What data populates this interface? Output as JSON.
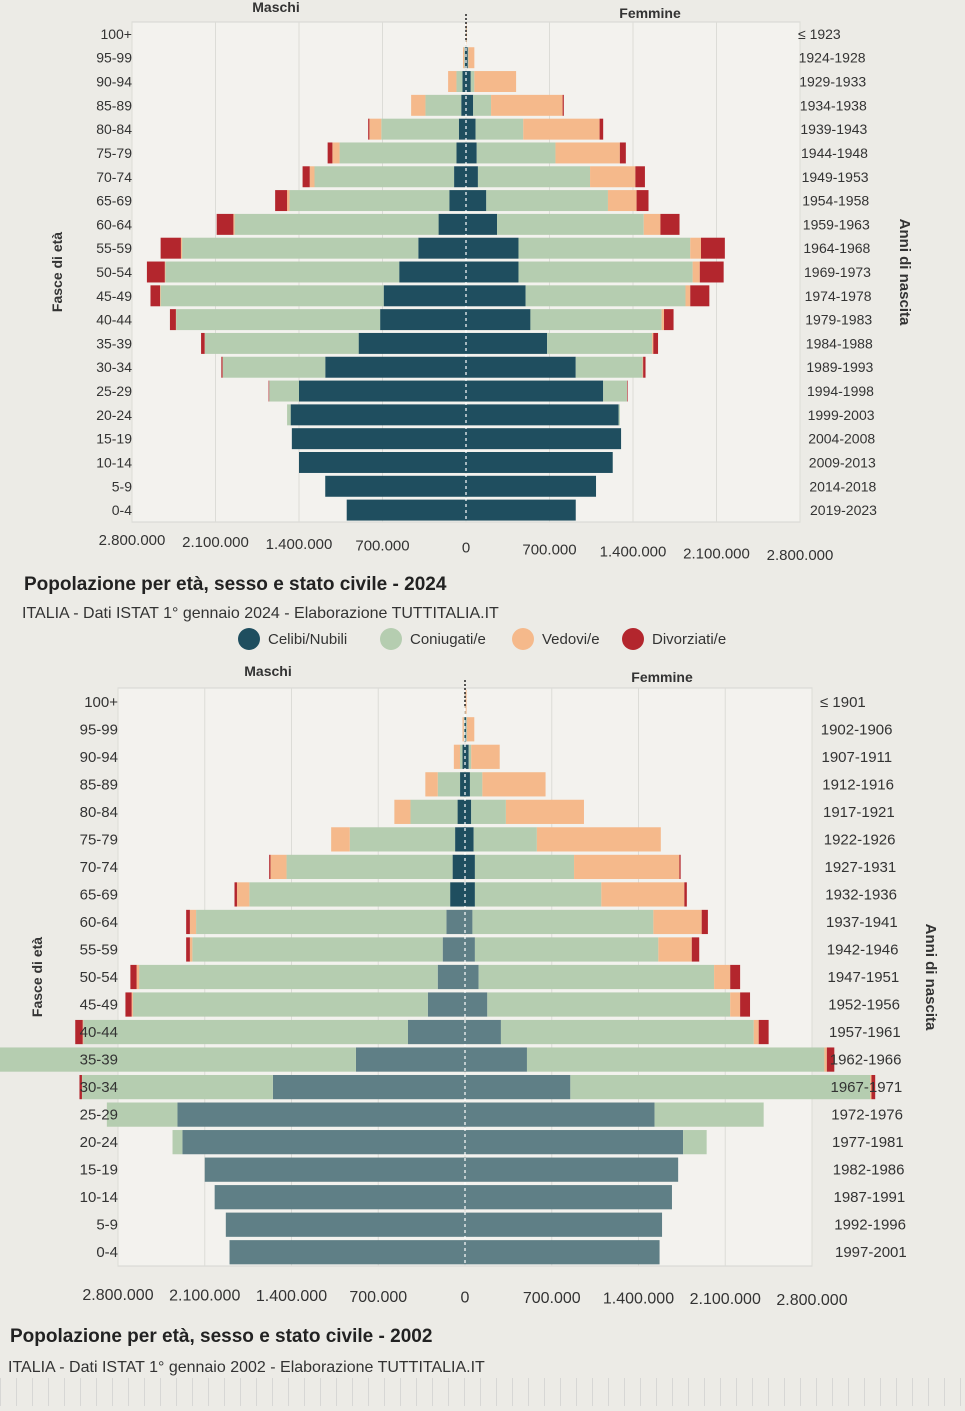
{
  "legend": {
    "items": [
      {
        "label": "Celibi/Nubili",
        "color": "#1f4e5f"
      },
      {
        "label": "Coniugati/e",
        "color": "#b5cdb0"
      },
      {
        "label": "Vedovi/e",
        "color": "#f5b98b"
      },
      {
        "label": "Divorziati/e",
        "color": "#b3262d"
      }
    ]
  },
  "chart_data": [
    {
      "type": "bar",
      "orientation": "horizontal-pyramid",
      "title": "Popolazione per età, sesso e stato civile - 2024",
      "subtitle": "ITALIA - Dati ISTAT 1° gennaio 2024 - Elaborazione TUTTITALIA.IT",
      "left_label": "Maschi",
      "right_label": "Femmine",
      "ylabel_left": "Fasce di età",
      "ylabel_right": "Anni di nascita",
      "xlim": [
        -2800000,
        2800000
      ],
      "xticks": [
        "2.800.000",
        "2.100.000",
        "1.400.000",
        "700.000",
        "0",
        "700.000",
        "1.400.000",
        "2.100.000",
        "2.800.000"
      ],
      "categories": [
        "100+",
        "95-99",
        "90-94",
        "85-89",
        "80-84",
        "75-79",
        "70-74",
        "65-69",
        "60-64",
        "55-59",
        "50-54",
        "45-49",
        "40-44",
        "35-39",
        "30-34",
        "25-29",
        "20-24",
        "15-19",
        "10-14",
        "5-9",
        "0-4"
      ],
      "birth_years": [
        "≤ 1923",
        "1924-1928",
        "1929-1933",
        "1934-1938",
        "1939-1943",
        "1944-1948",
        "1949-1953",
        "1954-1958",
        "1959-1963",
        "1964-1968",
        "1969-1973",
        "1974-1978",
        "1979-1983",
        "1984-1988",
        "1989-1993",
        "1994-1998",
        "1999-2003",
        "2004-2008",
        "2009-2013",
        "2014-2018",
        "2019-2023"
      ],
      "series": [
        {
          "name": "Celibi/Nubili",
          "color": "#1f4e5f",
          "males": [
            1000,
            10000,
            30000,
            40000,
            60000,
            80000,
            100000,
            140000,
            230000,
            400000,
            560000,
            690000,
            720000,
            900000,
            1180000,
            1400000,
            1470000,
            1460000,
            1400000,
            1180000,
            1000000
          ],
          "females": [
            2000,
            15000,
            40000,
            60000,
            80000,
            90000,
            100000,
            170000,
            260000,
            440000,
            440000,
            500000,
            540000,
            680000,
            920000,
            1150000,
            1280000,
            1300000,
            1230000,
            1090000,
            920000
          ]
        },
        {
          "name": "Coniugati/e",
          "color": "#b5cdb0",
          "males": [
            1000,
            5000,
            50000,
            300000,
            650000,
            980000,
            1170000,
            1340000,
            1710000,
            1980000,
            1960000,
            1870000,
            1710000,
            1290000,
            860000,
            250000,
            30000,
            0,
            0,
            0,
            0
          ],
          "females": [
            1000,
            5000,
            30000,
            150000,
            400000,
            660000,
            940000,
            1020000,
            1230000,
            1440000,
            1460000,
            1340000,
            1100000,
            880000,
            560000,
            200000,
            10000,
            0,
            0,
            0,
            0
          ]
        },
        {
          "name": "Vedovi/e",
          "color": "#f5b98b",
          "males": [
            1000,
            10000,
            70000,
            120000,
            100000,
            60000,
            40000,
            20000,
            10000,
            10000,
            5000,
            5000,
            2000,
            1000,
            1000,
            0,
            0,
            0,
            0,
            0,
            0
          ],
          "females": [
            5000,
            50000,
            350000,
            600000,
            640000,
            540000,
            380000,
            240000,
            140000,
            90000,
            60000,
            40000,
            20000,
            10000,
            5000,
            0,
            0,
            0,
            0,
            0,
            0
          ]
        },
        {
          "name": "Divorziati/e",
          "color": "#b3262d",
          "males": [
            0,
            0,
            0,
            0,
            10000,
            40000,
            60000,
            100000,
            140000,
            170000,
            150000,
            80000,
            50000,
            30000,
            10000,
            5000,
            0,
            0,
            0,
            0,
            0
          ],
          "females": [
            0,
            0,
            0,
            10000,
            30000,
            50000,
            80000,
            100000,
            160000,
            200000,
            200000,
            160000,
            80000,
            40000,
            20000,
            5000,
            0,
            0,
            0,
            0,
            0
          ]
        }
      ]
    },
    {
      "type": "bar",
      "orientation": "horizontal-pyramid",
      "title": "Popolazione per età, sesso e stato civile - 2002",
      "subtitle": "ITALIA - Dati ISTAT 1° gennaio 2002 - Elaborazione TUTTITALIA.IT",
      "left_label": "Maschi",
      "right_label": "Femmine",
      "ylabel_left": "Fasce di età",
      "ylabel_right": "Anni di nascita",
      "xlim": [
        -2800000,
        2800000
      ],
      "xticks": [
        "2.800.000",
        "2.100.000",
        "1.400.000",
        "700.000",
        "0",
        "700.000",
        "1.400.000",
        "2.100.000",
        "2.800.000"
      ],
      "categories": [
        "100+",
        "95-99",
        "90-94",
        "85-89",
        "80-84",
        "75-79",
        "70-74",
        "65-69",
        "60-64",
        "55-59",
        "50-54",
        "45-49",
        "40-44",
        "35-39",
        "30-34",
        "25-29",
        "20-24",
        "15-19",
        "10-14",
        "5-9",
        "0-4"
      ],
      "birth_years": [
        "≤ 1901",
        "1902-1906",
        "1907-1911",
        "1912-1916",
        "1917-1921",
        "1922-1926",
        "1927-1931",
        "1932-1936",
        "1937-1941",
        "1942-1946",
        "1947-1951",
        "1952-1956",
        "1957-1961",
        "1962-1966",
        "1967-1971",
        "1972-1976",
        "1977-1981",
        "1982-1986",
        "1987-1991",
        "1992-1996",
        "1997-2001"
      ],
      "series": [
        {
          "name": "Celibi/Nubili",
          "color": "#1f4e5f",
          "males": [
            1000,
            5000,
            20000,
            40000,
            60000,
            80000,
            100000,
            120000,
            150000,
            180000,
            220000,
            300000,
            460000,
            880000,
            1550000,
            2320000,
            2280000,
            2100000,
            2020000,
            1930000,
            1900000
          ],
          "females": [
            2000,
            10000,
            30000,
            40000,
            50000,
            70000,
            80000,
            80000,
            60000,
            80000,
            110000,
            180000,
            290000,
            500000,
            850000,
            1530000,
            1760000,
            1720000,
            1670000,
            1590000,
            1570000
          ],
          "fade_from_index": 8
        },
        {
          "name": "Coniugati/e",
          "color": "#b5cdb0",
          "males": [
            1000,
            5000,
            20000,
            180000,
            380000,
            850000,
            1340000,
            1620000,
            2020000,
            2020000,
            2410000,
            2380000,
            2620000,
            3050000,
            1540000,
            570000,
            80000,
            0,
            0,
            0,
            0
          ],
          "females": [
            1000,
            5000,
            20000,
            100000,
            280000,
            510000,
            800000,
            1020000,
            1460000,
            1480000,
            1900000,
            1960000,
            2040000,
            2400000,
            2420000,
            880000,
            190000,
            0,
            0,
            0,
            0
          ]
        },
        {
          "name": "Vedovi/e",
          "color": "#f5b98b",
          "males": [
            1000,
            10000,
            50000,
            100000,
            130000,
            150000,
            130000,
            100000,
            50000,
            20000,
            20000,
            10000,
            5000,
            2000,
            1000,
            0,
            0,
            0,
            0,
            0,
            0
          ],
          "females": [
            10000,
            60000,
            230000,
            510000,
            630000,
            1000000,
            850000,
            670000,
            390000,
            270000,
            130000,
            80000,
            40000,
            20000,
            10000,
            0,
            0,
            0,
            0,
            0,
            0
          ]
        },
        {
          "name": "Divorziati/e",
          "color": "#b3262d",
          "males": [
            0,
            0,
            0,
            0,
            0,
            0,
            10000,
            20000,
            30000,
            30000,
            50000,
            50000,
            60000,
            30000,
            20000,
            0,
            0,
            0,
            0,
            0,
            0
          ],
          "females": [
            0,
            0,
            0,
            0,
            0,
            0,
            10000,
            20000,
            50000,
            60000,
            80000,
            80000,
            80000,
            60000,
            30000,
            0,
            0,
            0,
            0,
            0,
            0
          ]
        }
      ]
    }
  ]
}
